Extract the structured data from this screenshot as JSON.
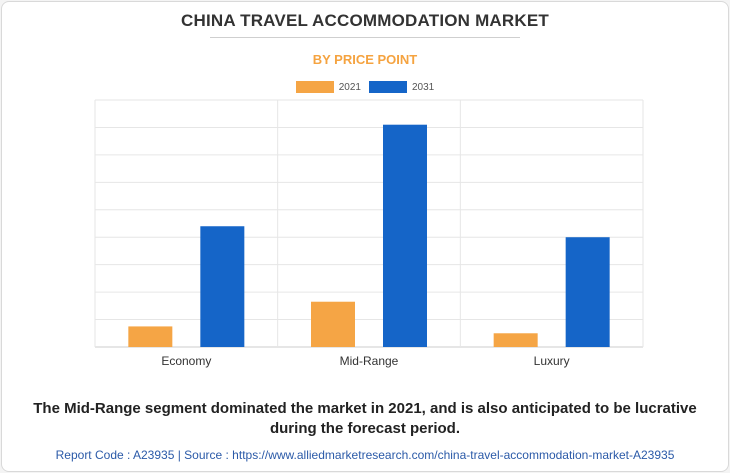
{
  "title": "CHINA TRAVEL ACCOMMODATION MARKET",
  "subtitle": "BY PRICE POINT",
  "caption": "The Mid-Range segment dominated the market in 2021, and is also anticipated to be lucrative during the forecast period.",
  "footer": "Report Code : A23935  |  Source : https://www.alliedmarketresearch.com/china-travel-accommodation-market-A23935",
  "colors": {
    "2021": "#f5a545",
    "2031": "#1565c8"
  },
  "chart_data": {
    "type": "bar",
    "title": "CHINA TRAVEL ACCOMMODATION MARKET",
    "subtitle": "BY PRICE POINT",
    "categories": [
      "Economy",
      "Mid-Range",
      "Luxury"
    ],
    "series": [
      {
        "name": "2021",
        "values": [
          7.5,
          16.5,
          5
        ]
      },
      {
        "name": "2031",
        "values": [
          44,
          81,
          40
        ]
      }
    ],
    "ylim": [
      0,
      90
    ],
    "grid": true,
    "legend": "top-center",
    "xlabel": "",
    "ylabel": ""
  }
}
